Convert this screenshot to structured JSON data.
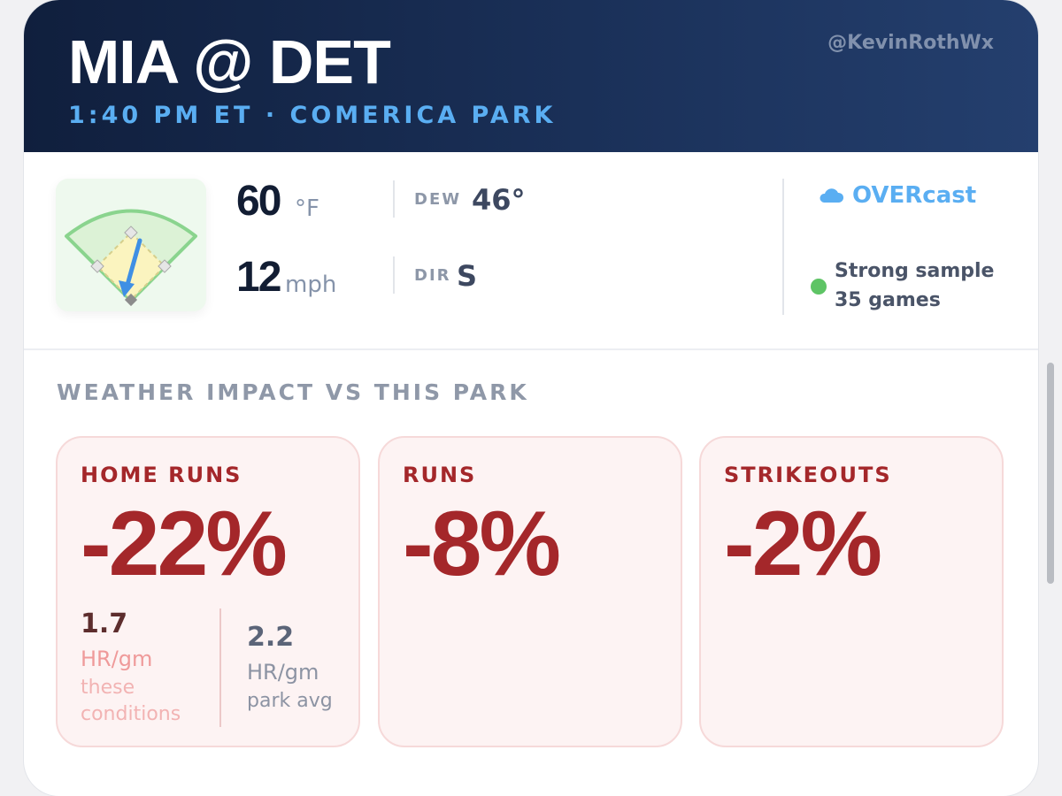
{
  "header": {
    "matchup": "MIA @ DET",
    "game_info": "1:40 PM ET · COMERICA PARK",
    "handle": "@KevinRothWx"
  },
  "conditions": {
    "temperature": {
      "value": "60",
      "unit": "°F"
    },
    "wind_speed": {
      "value": "12",
      "unit": "mph"
    },
    "dew_point": {
      "label": "DEW",
      "value": "46°"
    },
    "wind_direction": {
      "label": "DIR",
      "value": "S"
    },
    "sky": {
      "icon": "cloud-icon",
      "text": "OVERcast"
    },
    "sample": {
      "line1": "Strong sample",
      "line2": "35 games",
      "status_color": "#5ec465"
    },
    "field_icon": "baseball-field-wind-icon"
  },
  "impact": {
    "title": "WEATHER IMPACT VS THIS PARK",
    "metrics": [
      {
        "label": "HOME RUNS",
        "value": "-22%",
        "details": {
          "current": {
            "value": "1.7",
            "unit": "HR/gm",
            "note_line1": "these",
            "note_line2": "conditions"
          },
          "baseline": {
            "value": "2.2",
            "unit": "HR/gm",
            "note": "park avg"
          }
        }
      },
      {
        "label": "RUNS",
        "value": "-8%"
      },
      {
        "label": "STRIKEOUTS",
        "value": "-2%"
      }
    ]
  },
  "colors": {
    "header_bg": "#152a4c",
    "accent_blue": "#5aaef2",
    "negative_red": "#a4272a",
    "card_pink": "#fdf3f3"
  }
}
